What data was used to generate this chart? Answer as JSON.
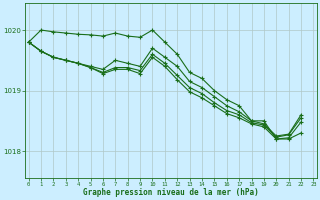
{
  "background_color": "#cceeff",
  "plot_bg_color": "#cceeff",
  "grid_color": "#b0c8c8",
  "line_color": "#1a6e1a",
  "xlabel": "Graphe pression niveau de la mer (hPa)",
  "xlabel_color": "#1a6e1a",
  "tick_color": "#1a6e1a",
  "yticks": [
    1018,
    1019,
    1020
  ],
  "ylim": [
    1017.55,
    1020.45
  ],
  "xlim": [
    -0.3,
    23.3
  ],
  "xticks": [
    0,
    1,
    2,
    3,
    4,
    5,
    6,
    7,
    8,
    9,
    10,
    11,
    12,
    13,
    14,
    15,
    16,
    17,
    18,
    19,
    20,
    21,
    22,
    23
  ],
  "series1": {
    "x": [
      0,
      1,
      2,
      3,
      4,
      5,
      6,
      7,
      8,
      9,
      10,
      11,
      12,
      13,
      14,
      15,
      16,
      17,
      18,
      19,
      20,
      21,
      22
    ],
    "y": [
      1019.8,
      1020.0,
      1019.97,
      1019.95,
      1019.93,
      1019.92,
      1019.9,
      1019.95,
      1019.9,
      1019.88,
      1020.0,
      1019.8,
      1019.6,
      1019.3,
      1019.2,
      1019.0,
      1018.85,
      1018.75,
      1018.5,
      1018.5,
      1018.2,
      1018.2,
      1018.3
    ]
  },
  "series2": {
    "x": [
      0,
      1,
      2,
      3,
      4,
      5,
      6,
      7,
      8,
      9,
      10,
      11,
      12,
      13,
      14,
      15,
      16,
      17,
      18,
      19,
      20,
      21,
      22
    ],
    "y": [
      1019.8,
      1019.65,
      1019.55,
      1019.5,
      1019.45,
      1019.4,
      1019.35,
      1019.5,
      1019.45,
      1019.4,
      1019.7,
      1019.55,
      1019.4,
      1019.15,
      1019.05,
      1018.9,
      1018.75,
      1018.65,
      1018.5,
      1018.45,
      1018.25,
      1018.28,
      1018.6
    ]
  },
  "series3": {
    "x": [
      0,
      1,
      2,
      3,
      4,
      5,
      6,
      7,
      8,
      9,
      10,
      11,
      12,
      13,
      14,
      15,
      16,
      17,
      18,
      19,
      20,
      21,
      22
    ],
    "y": [
      1019.8,
      1019.65,
      1019.55,
      1019.5,
      1019.45,
      1019.38,
      1019.3,
      1019.38,
      1019.38,
      1019.33,
      1019.6,
      1019.45,
      1019.25,
      1019.05,
      1018.95,
      1018.8,
      1018.67,
      1018.6,
      1018.47,
      1018.43,
      1018.23,
      1018.27,
      1018.55
    ]
  },
  "series4": {
    "x": [
      0,
      1,
      2,
      3,
      4,
      5,
      6,
      7,
      8,
      9,
      10,
      11,
      12,
      13,
      14,
      15,
      16,
      17,
      18,
      19,
      20,
      21,
      22
    ],
    "y": [
      1019.8,
      1019.65,
      1019.55,
      1019.5,
      1019.45,
      1019.38,
      1019.28,
      1019.35,
      1019.35,
      1019.28,
      1019.55,
      1019.4,
      1019.18,
      1018.98,
      1018.88,
      1018.75,
      1018.62,
      1018.55,
      1018.45,
      1018.4,
      1018.2,
      1018.22,
      1018.48
    ]
  }
}
